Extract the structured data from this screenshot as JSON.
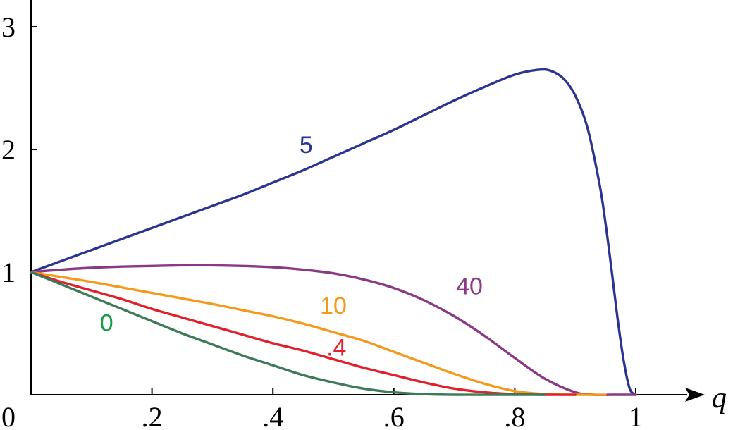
{
  "chart_data": {
    "type": "line",
    "title": "",
    "xlabel": "q",
    "ylabel": "",
    "xlim": [
      0,
      1.13
    ],
    "ylim": [
      0,
      3.22
    ],
    "grid": false,
    "legend": "none",
    "origin_label": "0",
    "x_ticks": [
      {
        "value": 0.2,
        "label": ".2"
      },
      {
        "value": 0.4,
        "label": ".4"
      },
      {
        "value": 0.6,
        "label": ".6"
      },
      {
        "value": 0.8,
        "label": ".8"
      },
      {
        "value": 1.0,
        "label": "1"
      }
    ],
    "y_ticks": [
      {
        "value": 1,
        "label": "1"
      },
      {
        "value": 2,
        "label": "2"
      },
      {
        "value": 3,
        "label": "3"
      }
    ],
    "series": [
      {
        "name": "5",
        "color": "#2b3590",
        "label_at": [
          0.455,
          1.97
        ],
        "x": [
          0,
          0.05,
          0.1,
          0.15,
          0.2,
          0.25,
          0.3,
          0.35,
          0.4,
          0.45,
          0.5,
          0.55,
          0.6,
          0.65,
          0.7,
          0.75,
          0.8,
          0.84,
          0.86,
          0.88,
          0.9,
          0.92,
          0.94,
          0.95,
          0.96,
          0.97,
          0.98,
          0.99,
          1.0
        ],
        "y": [
          1.0,
          1.09,
          1.18,
          1.27,
          1.36,
          1.45,
          1.54,
          1.63,
          1.73,
          1.83,
          1.94,
          2.05,
          2.16,
          2.28,
          2.4,
          2.51,
          2.61,
          2.65,
          2.64,
          2.58,
          2.44,
          2.18,
          1.72,
          1.4,
          1.02,
          0.62,
          0.28,
          0.05,
          0.0
        ]
      },
      {
        "name": "40",
        "color": "#8a3a85",
        "label_at": [
          0.725,
          0.82
        ],
        "x": [
          0,
          0.05,
          0.1,
          0.15,
          0.2,
          0.25,
          0.3,
          0.35,
          0.4,
          0.45,
          0.5,
          0.55,
          0.6,
          0.65,
          0.7,
          0.75,
          0.8,
          0.85,
          0.9,
          0.93,
          0.96,
          1.0
        ],
        "y": [
          1.0,
          1.02,
          1.035,
          1.045,
          1.05,
          1.055,
          1.055,
          1.05,
          1.04,
          1.02,
          0.99,
          0.94,
          0.87,
          0.77,
          0.64,
          0.48,
          0.3,
          0.13,
          0.02,
          0.0,
          0.0,
          0.0
        ]
      },
      {
        "name": "10",
        "color": "#f39a1d",
        "label_at": [
          0.5,
          0.66
        ],
        "x": [
          0,
          0.05,
          0.1,
          0.15,
          0.2,
          0.25,
          0.3,
          0.35,
          0.4,
          0.45,
          0.5,
          0.55,
          0.6,
          0.65,
          0.7,
          0.75,
          0.8,
          0.85,
          0.9,
          0.95
        ],
        "y": [
          1.0,
          0.96,
          0.92,
          0.875,
          0.83,
          0.785,
          0.74,
          0.69,
          0.64,
          0.58,
          0.51,
          0.44,
          0.35,
          0.26,
          0.17,
          0.09,
          0.03,
          0.005,
          0.0,
          0.0
        ]
      },
      {
        "name": ".4",
        "color": "#e0202a",
        "label_at": [
          0.505,
          0.32
        ],
        "x": [
          0,
          0.05,
          0.1,
          0.15,
          0.2,
          0.25,
          0.3,
          0.35,
          0.4,
          0.45,
          0.5,
          0.55,
          0.6,
          0.65,
          0.7,
          0.75,
          0.8,
          0.85,
          0.9
        ],
        "y": [
          1.0,
          0.92,
          0.85,
          0.78,
          0.7,
          0.63,
          0.56,
          0.49,
          0.42,
          0.36,
          0.29,
          0.22,
          0.16,
          0.1,
          0.05,
          0.02,
          0.005,
          0.0,
          0.0
        ]
      },
      {
        "name": "0",
        "color": "#3d7a5a",
        "label_at": [
          0.125,
          0.52
        ],
        "x": [
          0,
          0.05,
          0.1,
          0.15,
          0.2,
          0.25,
          0.3,
          0.35,
          0.4,
          0.45,
          0.5,
          0.55,
          0.6,
          0.65,
          0.7,
          0.75,
          0.8,
          0.85
        ],
        "y": [
          1.0,
          0.9,
          0.8,
          0.7,
          0.6,
          0.5,
          0.41,
          0.32,
          0.24,
          0.16,
          0.1,
          0.05,
          0.02,
          0.005,
          0.0,
          0.0,
          0.0,
          0.0
        ]
      }
    ],
    "label_colors": {
      "0": "#1a9a4a"
    }
  }
}
